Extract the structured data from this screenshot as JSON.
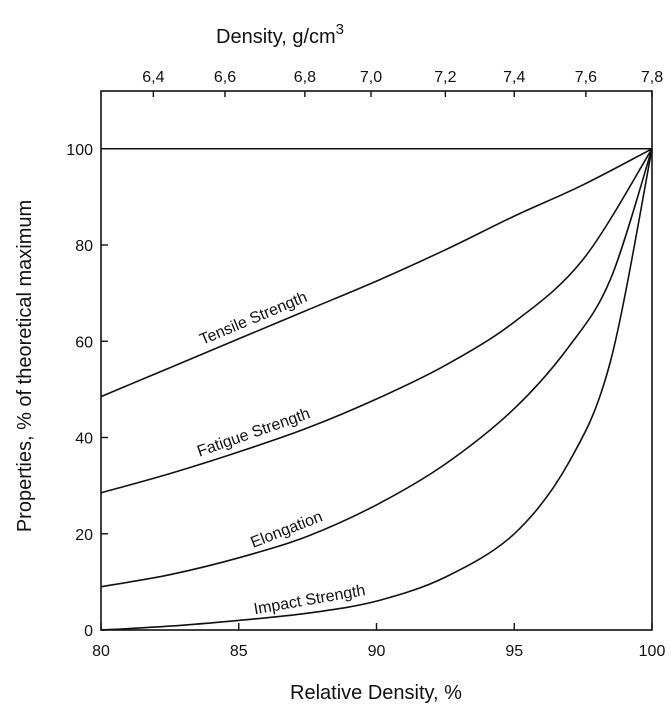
{
  "chart_data": {
    "type": "line",
    "xlabel": "Relative Density, %",
    "ylabel": "Properties, % of theoretical maximum",
    "top_axis_label": "Density, g/cm",
    "top_axis_label_superscript": "3",
    "xlim": [
      80,
      100
    ],
    "ylim": [
      0,
      112
    ],
    "x_ticks": [
      "80",
      "85",
      "90",
      "95",
      "100"
    ],
    "y_ticks": [
      "0",
      "20",
      "40",
      "60",
      "80",
      "100"
    ],
    "top_x_ticks": [
      {
        "label": "6,4",
        "relative_density": 81.9
      },
      {
        "label": "6,6",
        "relative_density": 84.5
      },
      {
        "label": "6,8",
        "relative_density": 87.4
      },
      {
        "label": "7,0",
        "relative_density": 89.8
      },
      {
        "label": "7,2",
        "relative_density": 92.5
      },
      {
        "label": "7,4",
        "relative_density": 95.0
      },
      {
        "label": "7,6",
        "relative_density": 97.6
      },
      {
        "label": "7,8",
        "relative_density": 100.0
      }
    ],
    "reference_line": 100,
    "grid": false,
    "legend": "none",
    "series": [
      {
        "name": "Tensile Strength",
        "x": [
          80,
          82.5,
          85,
          87.5,
          90,
          92.5,
          95,
          97.5,
          100
        ],
        "y": [
          48.5,
          54.5,
          60.5,
          66.5,
          72.5,
          79.0,
          86.0,
          92.5,
          100
        ]
      },
      {
        "name": "Fatigue Strength",
        "x": [
          80,
          82.5,
          85,
          87.5,
          90,
          92.5,
          95,
          97.5,
          100
        ],
        "y": [
          28.5,
          32.5,
          37.0,
          42.0,
          48.0,
          55.0,
          64.0,
          77.0,
          100
        ]
      },
      {
        "name": "Elongation",
        "x": [
          80,
          82.5,
          85,
          87.5,
          90,
          92.5,
          95,
          97,
          98.5,
          100
        ],
        "y": [
          9.0,
          11.5,
          15.0,
          19.5,
          26.0,
          34.5,
          46.0,
          59.0,
          73.0,
          100
        ]
      },
      {
        "name": "Impact Strength",
        "x": [
          80,
          82.5,
          85,
          87.5,
          90,
          92.5,
          95,
          97,
          98.5,
          100
        ],
        "y": [
          0.0,
          0.8,
          2.0,
          3.5,
          6.0,
          11.0,
          20.0,
          35.0,
          56.0,
          100
        ]
      }
    ]
  }
}
